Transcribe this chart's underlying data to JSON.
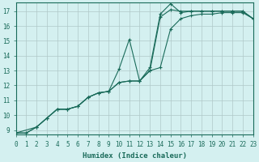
{
  "xlabel": "Humidex (Indice chaleur)",
  "bg_color": "#d4f0f0",
  "grid_color": "#b0c8c8",
  "line_color": "#1a6b5a",
  "x_ticks": [
    0,
    1,
    2,
    3,
    4,
    5,
    6,
    7,
    8,
    9,
    10,
    11,
    12,
    13,
    14,
    15,
    16,
    17,
    18,
    19,
    20,
    21,
    22,
    23
  ],
  "y_ticks": [
    9,
    10,
    11,
    12,
    13,
    14,
    15,
    16,
    17
  ],
  "xlim": [
    0,
    23
  ],
  "ylim": [
    8.7,
    17.6
  ],
  "line1_x": [
    0,
    1,
    2,
    3,
    4,
    5,
    6,
    7,
    8,
    9,
    10,
    11,
    12,
    13,
    14,
    15,
    16,
    17,
    18,
    19,
    20,
    21,
    22,
    23
  ],
  "line1_y": [
    8.8,
    8.8,
    9.2,
    9.8,
    10.4,
    10.4,
    10.6,
    11.2,
    11.5,
    11.6,
    13.1,
    15.1,
    12.3,
    13.2,
    16.8,
    17.5,
    16.9,
    17.0,
    17.0,
    17.0,
    17.0,
    17.0,
    17.0,
    16.5
  ],
  "line2_x": [
    0,
    1,
    2,
    3,
    4,
    5,
    6,
    7,
    8,
    9,
    10,
    11,
    12,
    13,
    14,
    15,
    16,
    17,
    18,
    19,
    20,
    21,
    22,
    23
  ],
  "line2_y": [
    8.8,
    8.8,
    9.2,
    9.8,
    10.4,
    10.4,
    10.6,
    11.2,
    11.5,
    11.6,
    12.2,
    12.3,
    12.3,
    13.0,
    16.6,
    17.1,
    17.0,
    17.0,
    17.0,
    17.0,
    17.0,
    17.0,
    17.0,
    16.5
  ],
  "line3_x": [
    0,
    2,
    3,
    4,
    5,
    6,
    7,
    8,
    9,
    10,
    11,
    12,
    13,
    14,
    15,
    16,
    17,
    18,
    19,
    20,
    21,
    22,
    23
  ],
  "line3_y": [
    8.8,
    9.2,
    9.8,
    10.4,
    10.4,
    10.6,
    11.2,
    11.5,
    11.6,
    12.2,
    12.3,
    12.3,
    13.0,
    13.2,
    15.8,
    16.5,
    16.7,
    16.8,
    16.8,
    16.9,
    16.9,
    16.9,
    16.5
  ]
}
